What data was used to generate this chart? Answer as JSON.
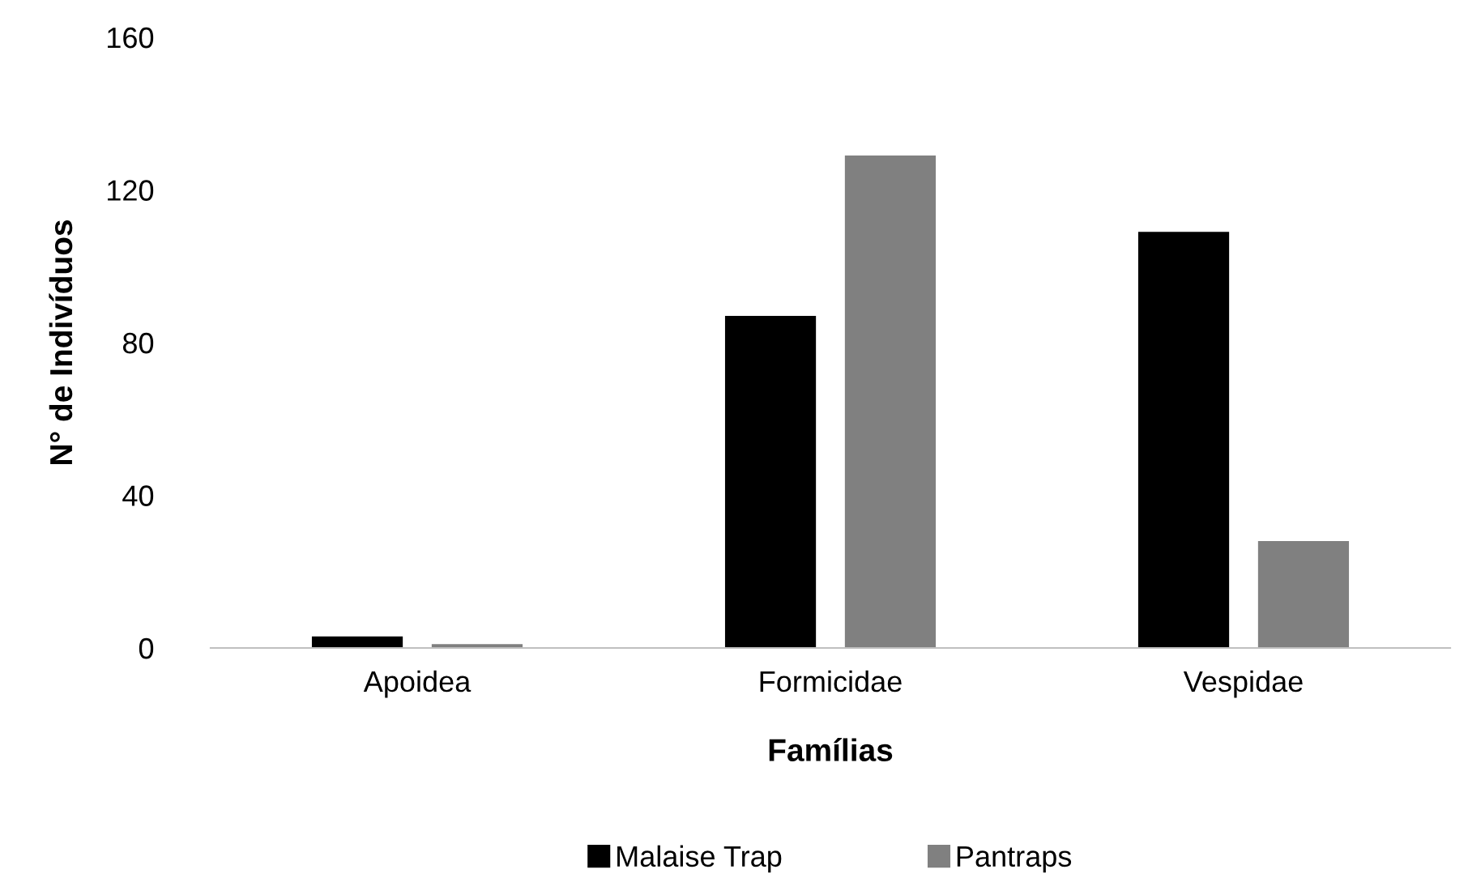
{
  "chart_data": {
    "type": "bar",
    "xlabel": "Famílias",
    "ylabel": "N° de Indivíduos",
    "categories": [
      "Apoidea",
      "Formicidae",
      "Vespidae"
    ],
    "series": [
      {
        "name": "Malaise Trap",
        "color": "#000000",
        "values": [
          3,
          87,
          109
        ]
      },
      {
        "name": "Pantraps",
        "color": "#808080",
        "values": [
          1,
          129,
          28
        ]
      }
    ],
    "ylim": [
      0,
      160
    ],
    "yticks": [
      0,
      40,
      80,
      120,
      160
    ],
    "grid": false,
    "legend": "bottom"
  }
}
